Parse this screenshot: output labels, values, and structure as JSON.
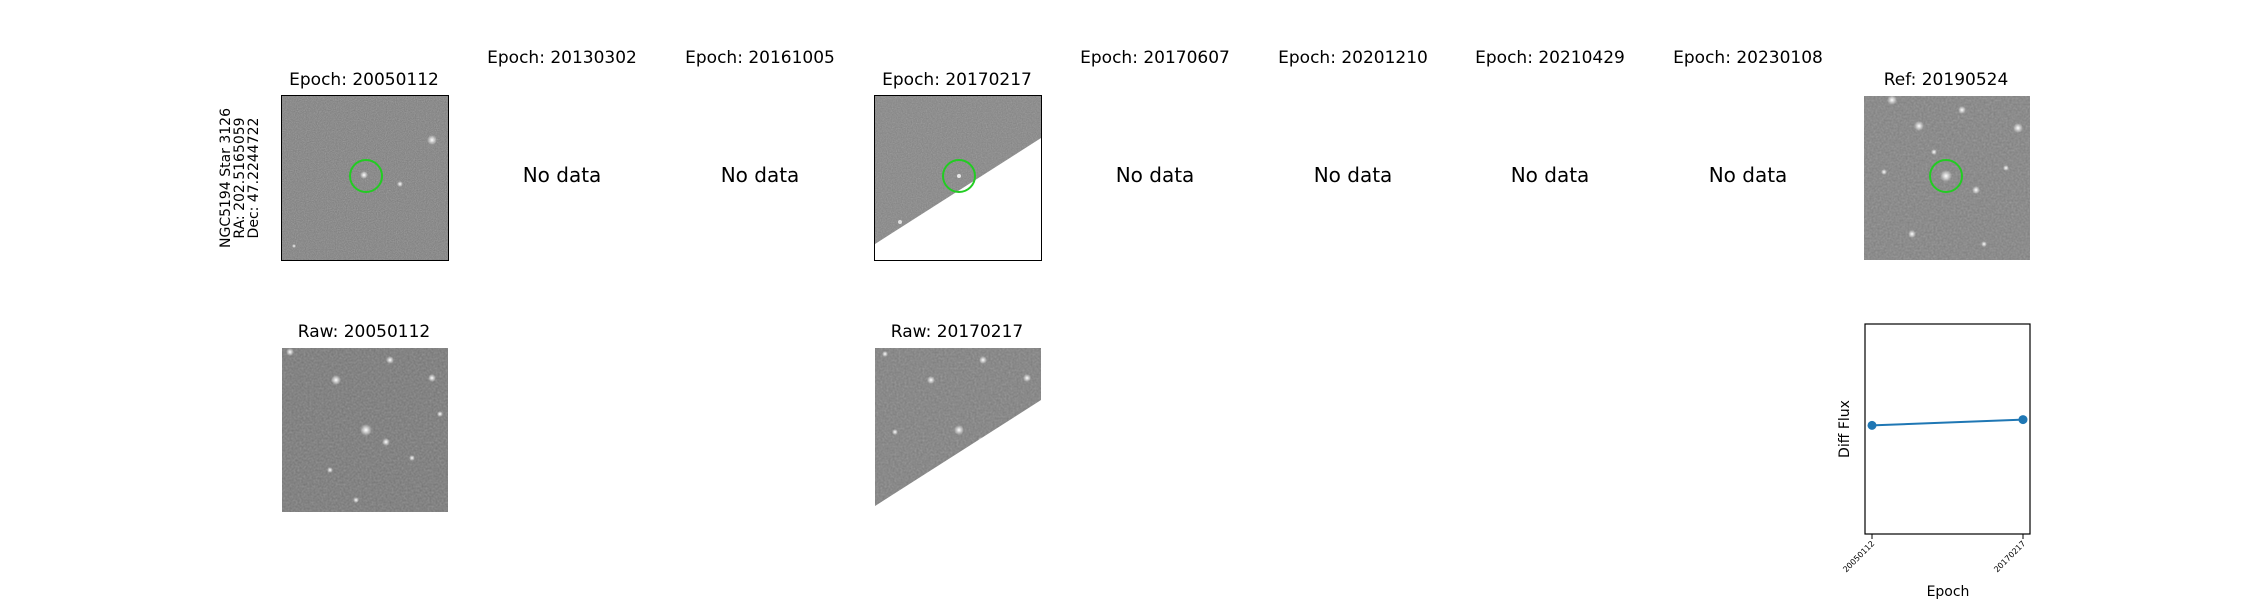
{
  "star": {
    "name": "NGC5194 Star 3126",
    "ra": "RA: 202.5165059",
    "dec": "Dec: 47.2244722"
  },
  "epochs": [
    {
      "title": "Epoch: 20050112",
      "has_data": true
    },
    {
      "title": "Epoch: 20130302",
      "has_data": false,
      "no_data": "No data"
    },
    {
      "title": "Epoch: 20161005",
      "has_data": false,
      "no_data": "No data"
    },
    {
      "title": "Epoch: 20170217",
      "has_data": true
    },
    {
      "title": "Epoch: 20170607",
      "has_data": false,
      "no_data": "No data"
    },
    {
      "title": "Epoch: 20201210",
      "has_data": false,
      "no_data": "No data"
    },
    {
      "title": "Epoch: 20210429",
      "has_data": false,
      "no_data": "No data"
    },
    {
      "title": "Epoch: 20230108",
      "has_data": false,
      "no_data": "No data"
    }
  ],
  "reference": {
    "title": "Ref: 20190524"
  },
  "raw": [
    {
      "title": "Raw: 20050112"
    },
    {
      "title": "Raw: 20170217"
    }
  ],
  "colors": {
    "marker_circle": "#22cc22",
    "series_line": "#1f77b4",
    "image_gray": "#7a7a7a"
  },
  "chart_data": {
    "type": "line",
    "x": [
      "20050112",
      "20170217"
    ],
    "series": [
      {
        "values": [
          0.0,
          0.08
        ]
      }
    ],
    "xlabel": "Epoch",
    "ylabel": "Diff Flux",
    "ylim": [
      -1.5,
      1.4
    ],
    "grid": false
  }
}
